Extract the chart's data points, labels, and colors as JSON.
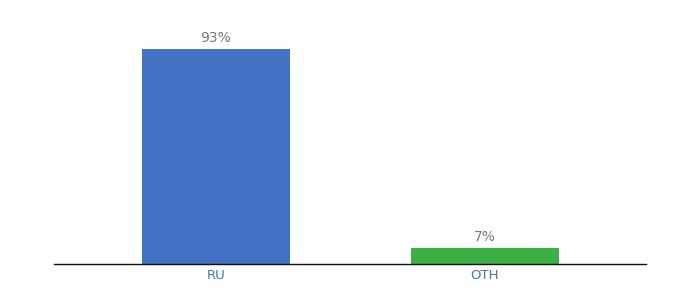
{
  "categories": [
    "RU",
    "OTH"
  ],
  "values": [
    93,
    7
  ],
  "bar_colors": [
    "#4472c4",
    "#3cb043"
  ],
  "label_texts": [
    "93%",
    "7%"
  ],
  "background_color": "#ffffff",
  "ylim": [
    0,
    105
  ],
  "label_fontsize": 10,
  "tick_fontsize": 9.5,
  "bar_width": 0.55,
  "label_color": "#777777",
  "tick_color": "#4477aa"
}
